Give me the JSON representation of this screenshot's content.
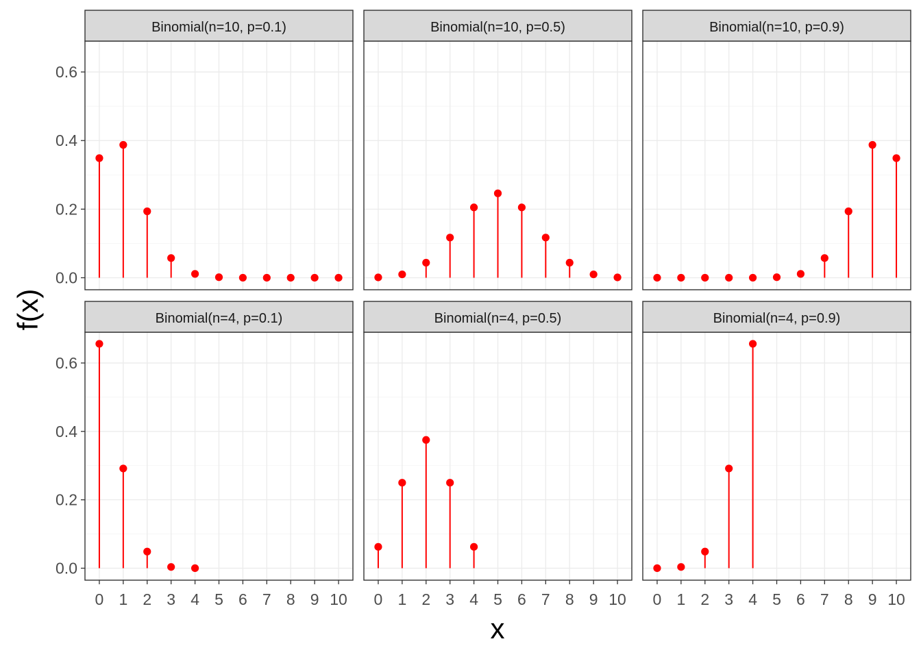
{
  "chart_data": {
    "type": "scatter",
    "layout": "facet grid 2 rows x 3 columns, shared axes",
    "xlabel": "x",
    "ylabel": "f(x)",
    "x_ticks": [
      "0",
      "1",
      "2",
      "3",
      "4",
      "5",
      "6",
      "7",
      "8",
      "9",
      "10"
    ],
    "y_ticks": [
      "0.0",
      "0.2",
      "0.4",
      "0.6"
    ],
    "xlim": [
      -0.6,
      10.6
    ],
    "ylim": [
      -0.035,
      0.69
    ],
    "grid": true,
    "mark_color": "#ff0000",
    "panels": [
      {
        "title": "Binomial(n=10, p=0.1)",
        "x": [
          0,
          1,
          2,
          3,
          4,
          5,
          6,
          7,
          8,
          9,
          10
        ],
        "values": [
          0.3487,
          0.3874,
          0.1937,
          0.0574,
          0.0112,
          0.0015,
          0.0001,
          0.0,
          0.0,
          0.0,
          0.0
        ]
      },
      {
        "title": "Binomial(n=10, p=0.5)",
        "x": [
          0,
          1,
          2,
          3,
          4,
          5,
          6,
          7,
          8,
          9,
          10
        ],
        "values": [
          0.001,
          0.0098,
          0.0439,
          0.1172,
          0.2051,
          0.2461,
          0.2051,
          0.1172,
          0.0439,
          0.0098,
          0.001
        ]
      },
      {
        "title": "Binomial(n=10, p=0.9)",
        "x": [
          0,
          1,
          2,
          3,
          4,
          5,
          6,
          7,
          8,
          9,
          10
        ],
        "values": [
          0.0,
          0.0,
          0.0,
          0.0,
          0.0001,
          0.0015,
          0.0112,
          0.0574,
          0.1937,
          0.3874,
          0.3487
        ]
      },
      {
        "title": "Binomial(n=4, p=0.1)",
        "x": [
          0,
          1,
          2,
          3,
          4
        ],
        "values": [
          0.6561,
          0.2916,
          0.0486,
          0.0036,
          0.0001
        ]
      },
      {
        "title": "Binomial(n=4, p=0.5)",
        "x": [
          0,
          1,
          2,
          3,
          4
        ],
        "values": [
          0.0625,
          0.25,
          0.375,
          0.25,
          0.0625
        ]
      },
      {
        "title": "Binomial(n=4, p=0.9)",
        "x": [
          0,
          1,
          2,
          3,
          4
        ],
        "values": [
          0.0001,
          0.0036,
          0.0486,
          0.2916,
          0.6561
        ]
      }
    ]
  }
}
